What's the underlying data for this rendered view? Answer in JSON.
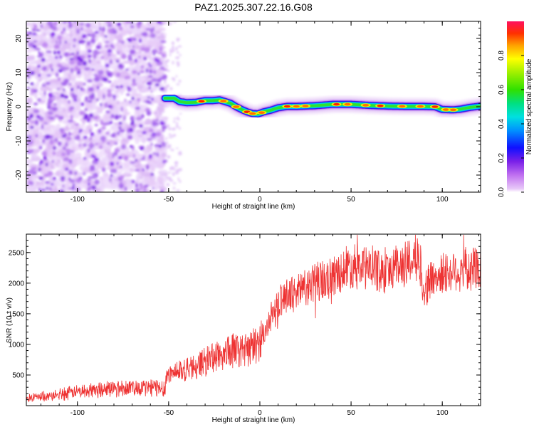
{
  "title": "PAZ1.2025.307.22.16.G08",
  "chart_data": [
    {
      "type": "heatmap",
      "name": "spectrogram",
      "xlabel": "Height of straight line (km)",
      "ylabel": "Frequency (Hz)",
      "xlim": [
        -128,
        121
      ],
      "ylim": [
        -25,
        25
      ],
      "xticks": [
        -100,
        -50,
        0,
        50,
        100
      ],
      "yticks": [
        20,
        10,
        0,
        -10,
        -20
      ],
      "noise_region_km": [
        -128,
        -52
      ],
      "ridge": {
        "x": [
          -52,
          -47,
          -44,
          -40,
          -35,
          -30,
          -26,
          -22,
          -19,
          -16,
          -13,
          -10,
          -7,
          -4,
          -1,
          2,
          6,
          10,
          15,
          20,
          30,
          40,
          50,
          60,
          70,
          80,
          90,
          96,
          100,
          106,
          110,
          115,
          121
        ],
        "y": [
          2.5,
          2.5,
          1.5,
          1.2,
          1.3,
          1.8,
          1.8,
          2.0,
          1.5,
          1.0,
          0.0,
          -0.8,
          -1.5,
          -2.0,
          -2.1,
          -1.5,
          -1.0,
          -0.3,
          0.1,
          0.1,
          0.3,
          0.7,
          0.7,
          0.4,
          0.2,
          0.1,
          0.1,
          0.0,
          -0.8,
          -0.9,
          -0.7,
          -0.2,
          0.2
        ]
      },
      "hotspots_km": [
        -32,
        -20,
        -13,
        -7,
        -4,
        1,
        15,
        20,
        25,
        42,
        48,
        58,
        66,
        78,
        88,
        96,
        102,
        106
      ],
      "colorbar": {
        "label": "Normalized spectral amplitude",
        "range": [
          0,
          1
        ],
        "ticks": [
          "0.0",
          "0.2",
          "0.4",
          "0.6",
          "0.8"
        ]
      }
    },
    {
      "type": "line",
      "name": "snr",
      "xlabel": "Height of straight line (km)",
      "ylabel": "SNR (10 * v/v)",
      "xlim": [
        -128,
        121
      ],
      "ylim": [
        0,
        2800
      ],
      "xticks": [
        -100,
        -50,
        0,
        50,
        100
      ],
      "yticks": [
        500,
        1000,
        1500,
        2000,
        2500
      ],
      "color": "#ee3333",
      "trend": {
        "x": [
          -128,
          -115,
          -100,
          -80,
          -60,
          -52,
          -51,
          -45,
          -35,
          -25,
          -15,
          -5,
          0,
          5,
          10,
          15,
          20,
          30,
          40,
          50,
          55,
          60,
          65,
          70,
          75,
          80,
          85,
          88,
          90,
          95,
          100,
          110,
          121
        ],
        "y": [
          130,
          150,
          230,
          290,
          300,
          290,
          500,
          560,
          650,
          800,
          900,
          920,
          1050,
          1350,
          1650,
          1800,
          1850,
          2000,
          2100,
          2300,
          2250,
          2250,
          2200,
          2150,
          2300,
          2300,
          2450,
          2300,
          1900,
          2100,
          2150,
          2200,
          2250
        ]
      }
    }
  ]
}
